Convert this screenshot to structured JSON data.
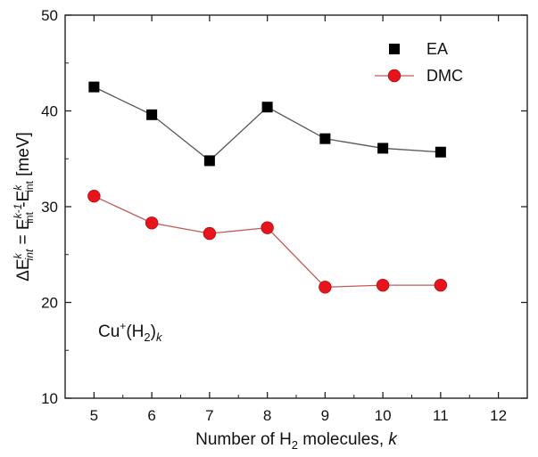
{
  "chart_data": {
    "type": "scatter",
    "x": [
      5,
      6,
      7,
      8,
      9,
      10,
      11
    ],
    "xlim": [
      4.5,
      12.5
    ],
    "ylim": [
      10,
      50
    ],
    "xticks": [
      5,
      6,
      7,
      8,
      9,
      10,
      11,
      12
    ],
    "yticks": [
      10,
      20,
      30,
      40,
      50
    ],
    "xlabel_parts": [
      "Number of H",
      "2",
      " molecules, ",
      "k"
    ],
    "ylabel_parts": [
      "ΔE",
      "k",
      "int",
      " = E",
      "k-1",
      "int",
      " -E",
      "k",
      "int",
      " [meV]"
    ],
    "annotation_parts": [
      "Cu",
      "+",
      "(H",
      "2",
      ")",
      "k"
    ],
    "legend_position": "top-right",
    "grid": false,
    "series": [
      {
        "name": "EA",
        "marker": "square",
        "color": "#000000",
        "line_color": "#555555",
        "values": [
          42.5,
          39.6,
          34.8,
          40.4,
          37.1,
          36.1,
          35.7
        ]
      },
      {
        "name": "DMC",
        "marker": "circle",
        "color": "#e8141b",
        "line_color": "#c05a5a",
        "values": [
          31.1,
          28.3,
          27.2,
          27.8,
          21.6,
          21.8,
          21.8
        ]
      }
    ]
  }
}
